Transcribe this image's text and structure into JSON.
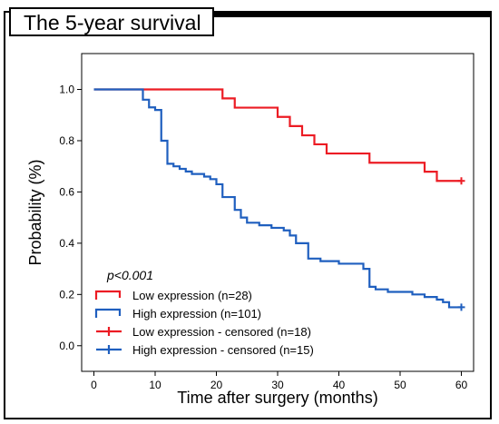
{
  "figure_title": "The 5-year survival",
  "chart_data": {
    "type": "line",
    "subtype": "kaplan-meier step curve",
    "xlabel": "Time after surgery (months)",
    "ylabel": "Probability (%)",
    "xlim": [
      -2,
      62
    ],
    "ylim": [
      -0.1,
      1.14
    ],
    "xticks": [
      0,
      10,
      20,
      30,
      40,
      50,
      60
    ],
    "yticks": [
      0.0,
      0.2,
      0.4,
      0.6,
      0.8,
      1.0
    ],
    "ytick_labels": [
      "0.0",
      "0.2",
      "0.4",
      "0.6",
      "0.8",
      "1.0"
    ],
    "grid": false,
    "legend_position": "bottom-left",
    "annotation": "p<0.001",
    "series": [
      {
        "name": "Low expression (n=28)",
        "color": "#ec1c24",
        "x": [
          0,
          21,
          23,
          30,
          32,
          34,
          36,
          38,
          45,
          54,
          56,
          60
        ],
        "y": [
          1.0,
          0.965,
          0.929,
          0.893,
          0.857,
          0.821,
          0.786,
          0.75,
          0.714,
          0.679,
          0.643,
          0.643
        ]
      },
      {
        "name": "High expression (n=101)",
        "color": "#1f5fbf",
        "x": [
          0,
          8,
          9,
          10,
          11,
          12,
          13,
          14,
          15,
          16,
          18,
          19,
          20,
          21,
          23,
          24,
          25,
          27,
          29,
          31,
          32,
          33,
          35,
          37,
          40,
          44,
          45,
          46,
          48,
          49,
          52,
          54,
          56,
          57,
          58,
          60
        ],
        "y": [
          1.0,
          0.96,
          0.93,
          0.92,
          0.8,
          0.71,
          0.7,
          0.69,
          0.68,
          0.67,
          0.66,
          0.65,
          0.63,
          0.58,
          0.53,
          0.5,
          0.48,
          0.47,
          0.46,
          0.45,
          0.43,
          0.4,
          0.34,
          0.33,
          0.32,
          0.3,
          0.23,
          0.22,
          0.21,
          0.21,
          0.2,
          0.19,
          0.18,
          0.17,
          0.15,
          0.15
        ]
      }
    ],
    "legend_entries": [
      {
        "label": "Low expression (n=28)",
        "color": "#ec1c24",
        "marker": "step"
      },
      {
        "label": "High expression (n=101)",
        "color": "#1f5fbf",
        "marker": "step"
      },
      {
        "label": "Low expression - censored (n=18)",
        "color": "#ec1c24",
        "marker": "plus"
      },
      {
        "label": "High expression - censored (n=15)",
        "color": "#1f5fbf",
        "marker": "plus"
      }
    ],
    "censored_marks": [
      {
        "series": "Low expression (n=28)",
        "x": 60,
        "y": 0.643
      },
      {
        "series": "High expression (n=101)",
        "x": 60,
        "y": 0.15
      }
    ]
  }
}
